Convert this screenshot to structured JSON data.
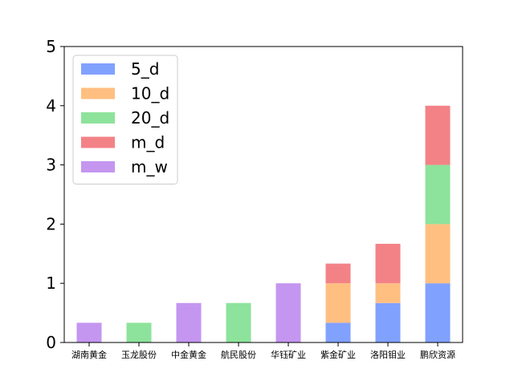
{
  "chart_data": {
    "type": "bar",
    "stacked": true,
    "title": "",
    "xlabel": "",
    "ylabel": "",
    "ylim": [
      0,
      5
    ],
    "yticks": [
      0,
      1,
      2,
      3,
      4,
      5
    ],
    "categories": [
      "湖南黄金",
      "玉龙股份",
      "中金黄金",
      "航民股份",
      "华钰矿业",
      "紫金矿业",
      "洛阳钼业",
      "鹏欣资源"
    ],
    "series": [
      {
        "name": "5_d",
        "color": "#81a1ff",
        "values": [
          0,
          0,
          0,
          0,
          0,
          0.333,
          0.667,
          1
        ]
      },
      {
        "name": "10_d",
        "color": "#ffbf81",
        "values": [
          0,
          0,
          0,
          0,
          0,
          0.667,
          0.333,
          1
        ]
      },
      {
        "name": "20_d",
        "color": "#8de39b",
        "values": [
          0,
          0.333,
          0,
          0.667,
          0,
          0,
          0,
          1
        ]
      },
      {
        "name": "m_d",
        "color": "#f38287",
        "values": [
          0,
          0,
          0,
          0,
          0,
          0.333,
          0.667,
          1
        ]
      },
      {
        "name": "m_w",
        "color": "#c496f0",
        "values": [
          0.333,
          0,
          0.667,
          0,
          1,
          0,
          0,
          0
        ]
      }
    ],
    "legend_position": "top-left",
    "grid": false
  }
}
